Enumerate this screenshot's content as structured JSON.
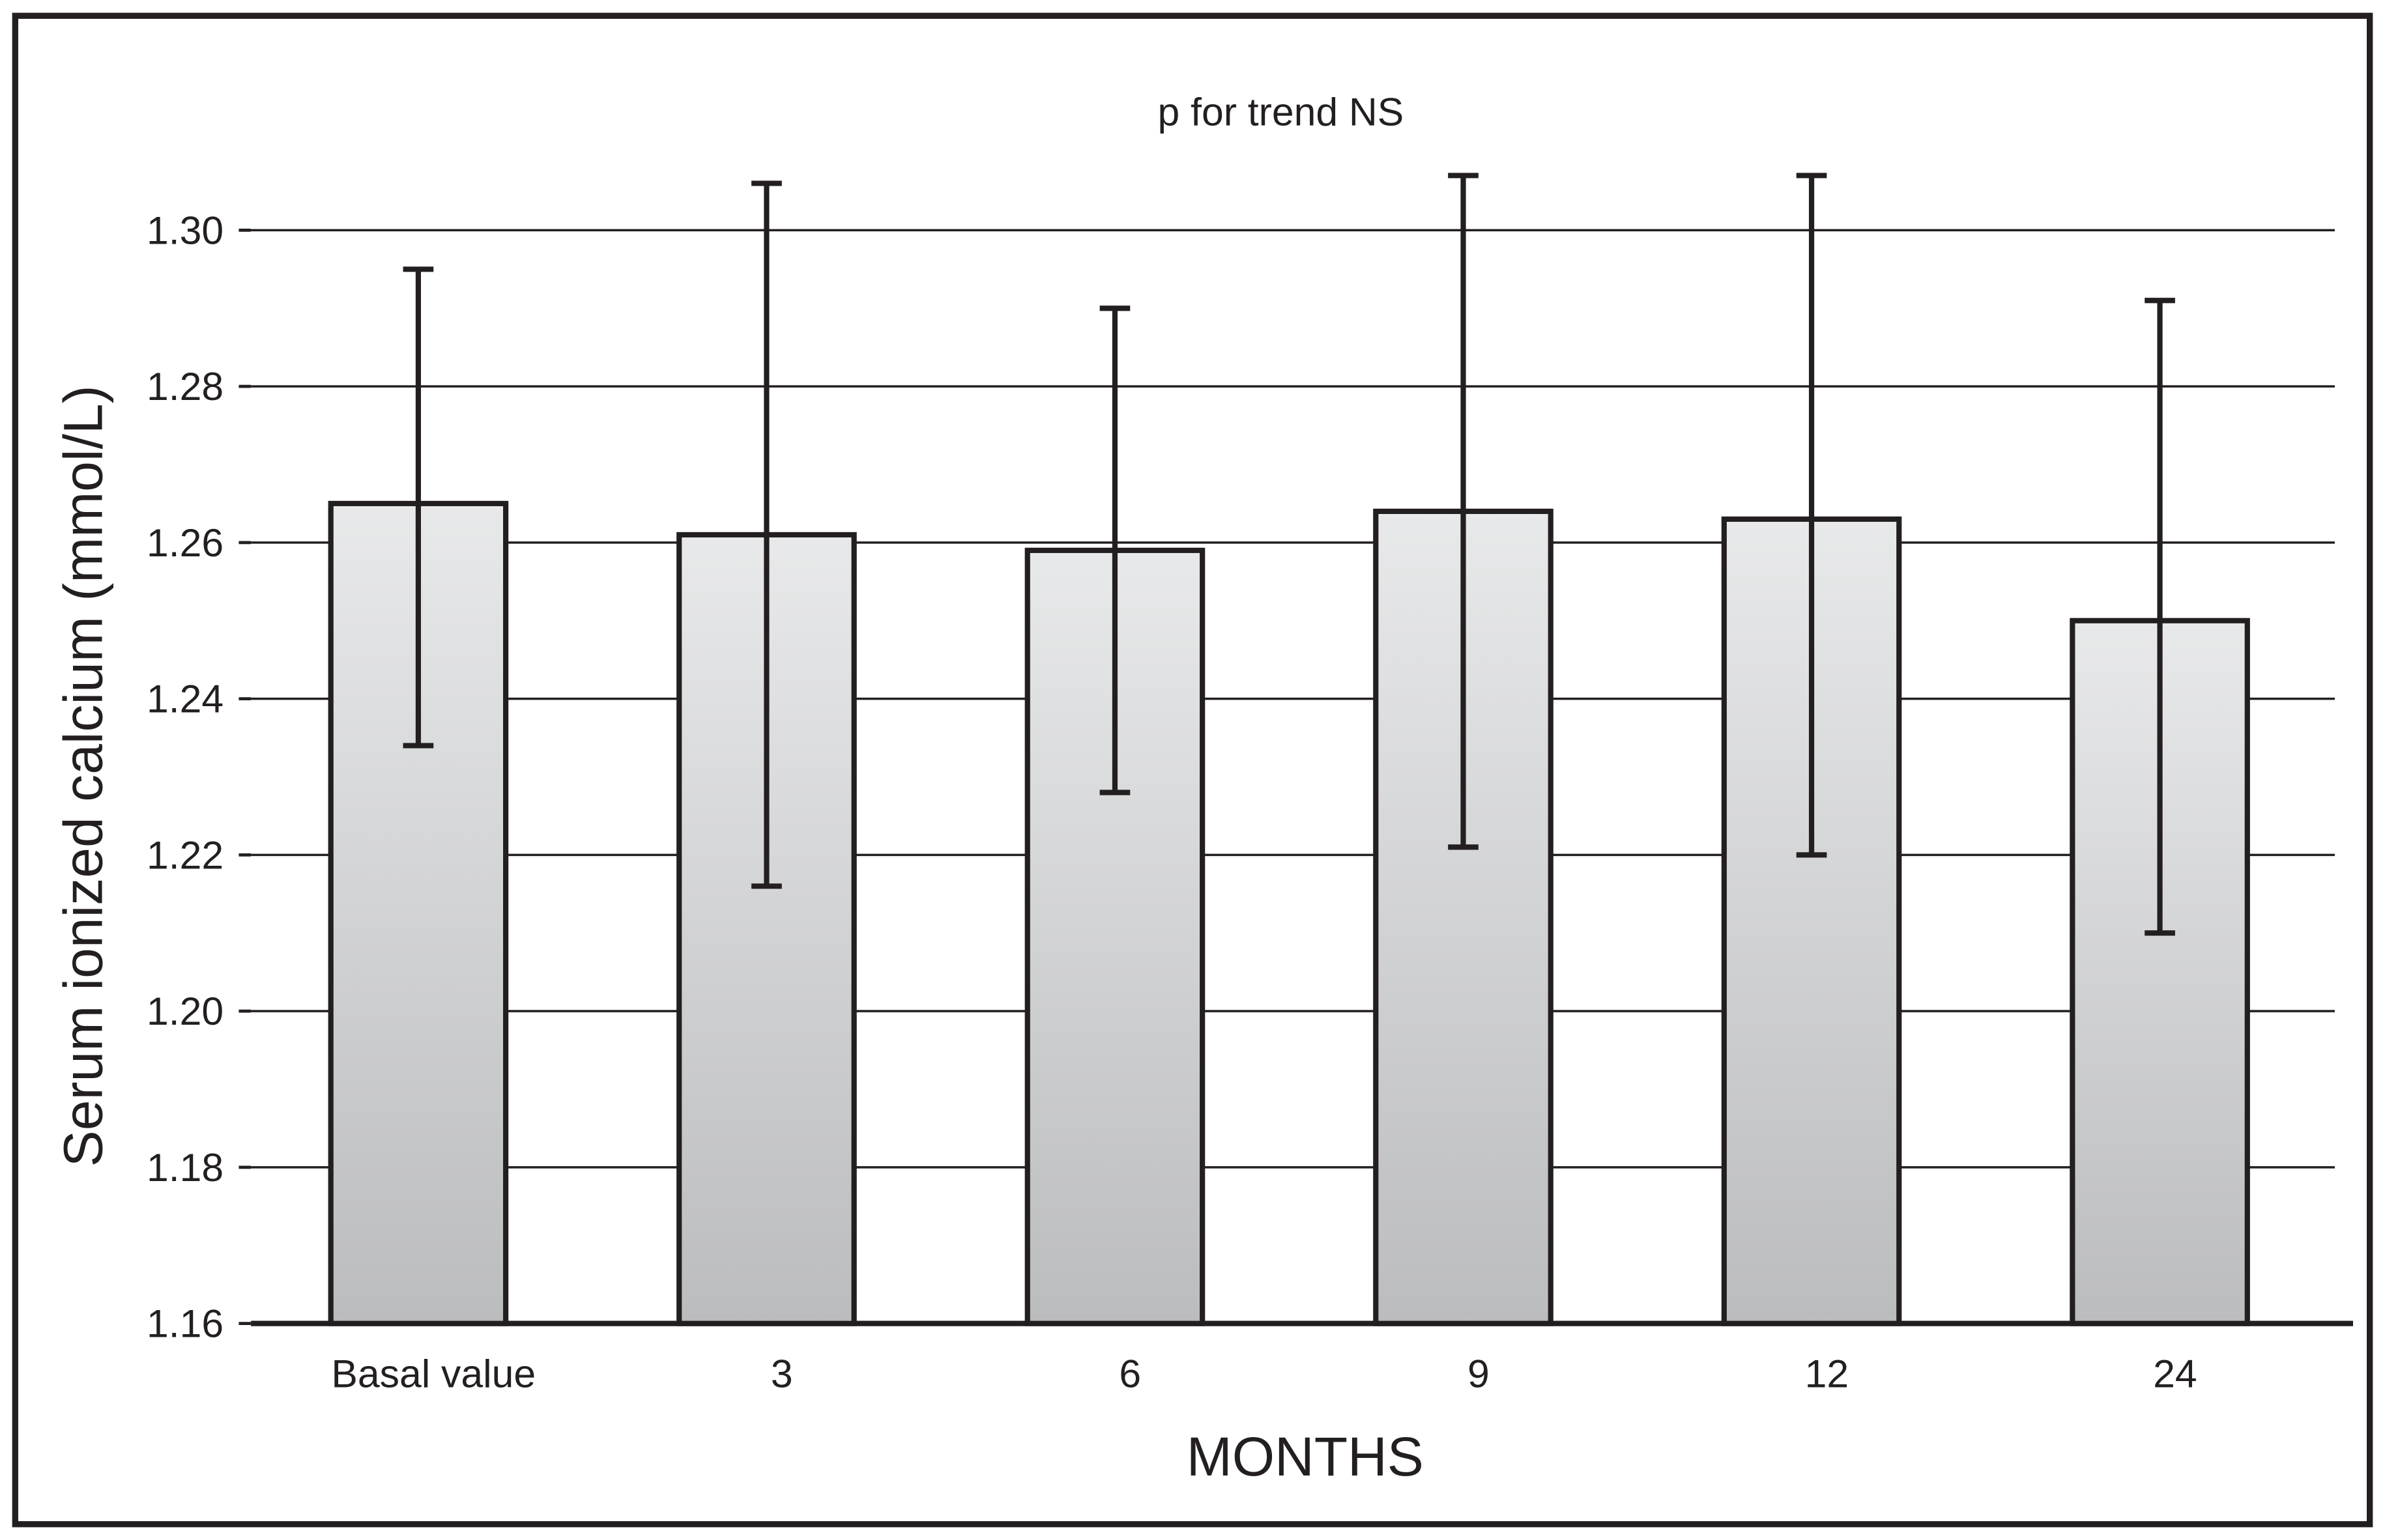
{
  "chart_data": {
    "type": "bar",
    "title": "p for trend NS",
    "xlabel": "MONTHS",
    "ylabel": "Serum ionized calcium (mmol/L)",
    "ylim": [
      1.16,
      1.3
    ],
    "yticks": [
      "1.16",
      "1.18",
      "1.20",
      "1.22",
      "1.24",
      "1.26",
      "1.28",
      "1.30"
    ],
    "grid": true,
    "categories": [
      "Basal value",
      "3",
      "6",
      "9",
      "12",
      "24"
    ],
    "values": [
      1.265,
      1.261,
      1.259,
      1.264,
      1.263,
      1.25
    ],
    "error_upper": [
      1.295,
      1.306,
      1.29,
      1.307,
      1.307,
      1.291
    ],
    "error_lower": [
      1.234,
      1.216,
      1.228,
      1.221,
      1.22,
      1.21
    ],
    "colors": {
      "bar_top": "#e8e9ea",
      "bar_bottom": "#bbbcbe",
      "outline": "#231f20"
    }
  }
}
